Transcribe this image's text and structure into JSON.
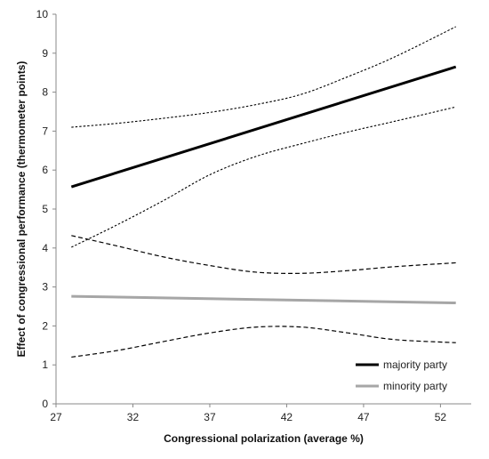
{
  "chart_data": {
    "type": "line",
    "xlabel": "Congressional polarization  (average %)",
    "ylabel": "Effect of congressional performance (thermometer points)",
    "xlim": [
      27,
      54
    ],
    "ylim": [
      0,
      10
    ],
    "x_ticks": [
      27,
      32,
      37,
      42,
      47,
      52
    ],
    "y_ticks": [
      0,
      1,
      2,
      3,
      4,
      5,
      6,
      7,
      8,
      9,
      10
    ],
    "grid": false,
    "legend_position": "bottom-right",
    "series": [
      {
        "name": "majority party",
        "role": "estimate",
        "color": "#000000",
        "style": "solid",
        "x": [
          28,
          53
        ],
        "y": [
          5.57,
          8.65
        ]
      },
      {
        "role": "upper-ci",
        "group": "majority party",
        "color": "#000000",
        "style": "dotted",
        "x": [
          28,
          31,
          34,
          37,
          40,
          43,
          46,
          49,
          53
        ],
        "y": [
          7.1,
          7.2,
          7.33,
          7.48,
          7.68,
          7.95,
          8.4,
          8.9,
          9.68
        ]
      },
      {
        "role": "lower-ci",
        "group": "majority party",
        "color": "#000000",
        "style": "dotted",
        "x": [
          28,
          31,
          34,
          37,
          40,
          43,
          46,
          49,
          53
        ],
        "y": [
          4.02,
          4.6,
          5.22,
          5.88,
          6.35,
          6.68,
          6.98,
          7.25,
          7.62
        ]
      },
      {
        "name": "minority party",
        "role": "estimate",
        "color": "#a6a6a6",
        "style": "solid",
        "x": [
          28,
          53
        ],
        "y": [
          2.76,
          2.59
        ]
      },
      {
        "role": "upper-ci",
        "group": "minority party",
        "color": "#000000",
        "style": "dashed",
        "x": [
          28,
          31,
          34,
          37,
          40,
          43,
          46,
          49,
          53
        ],
        "y": [
          4.32,
          4.05,
          3.77,
          3.55,
          3.38,
          3.35,
          3.42,
          3.52,
          3.62
        ]
      },
      {
        "role": "lower-ci",
        "group": "minority party",
        "color": "#000000",
        "style": "dashed",
        "x": [
          28,
          31,
          34,
          37,
          40,
          43,
          46,
          49,
          53
        ],
        "y": [
          1.2,
          1.37,
          1.6,
          1.82,
          1.97,
          1.97,
          1.82,
          1.65,
          1.57
        ]
      }
    ]
  }
}
